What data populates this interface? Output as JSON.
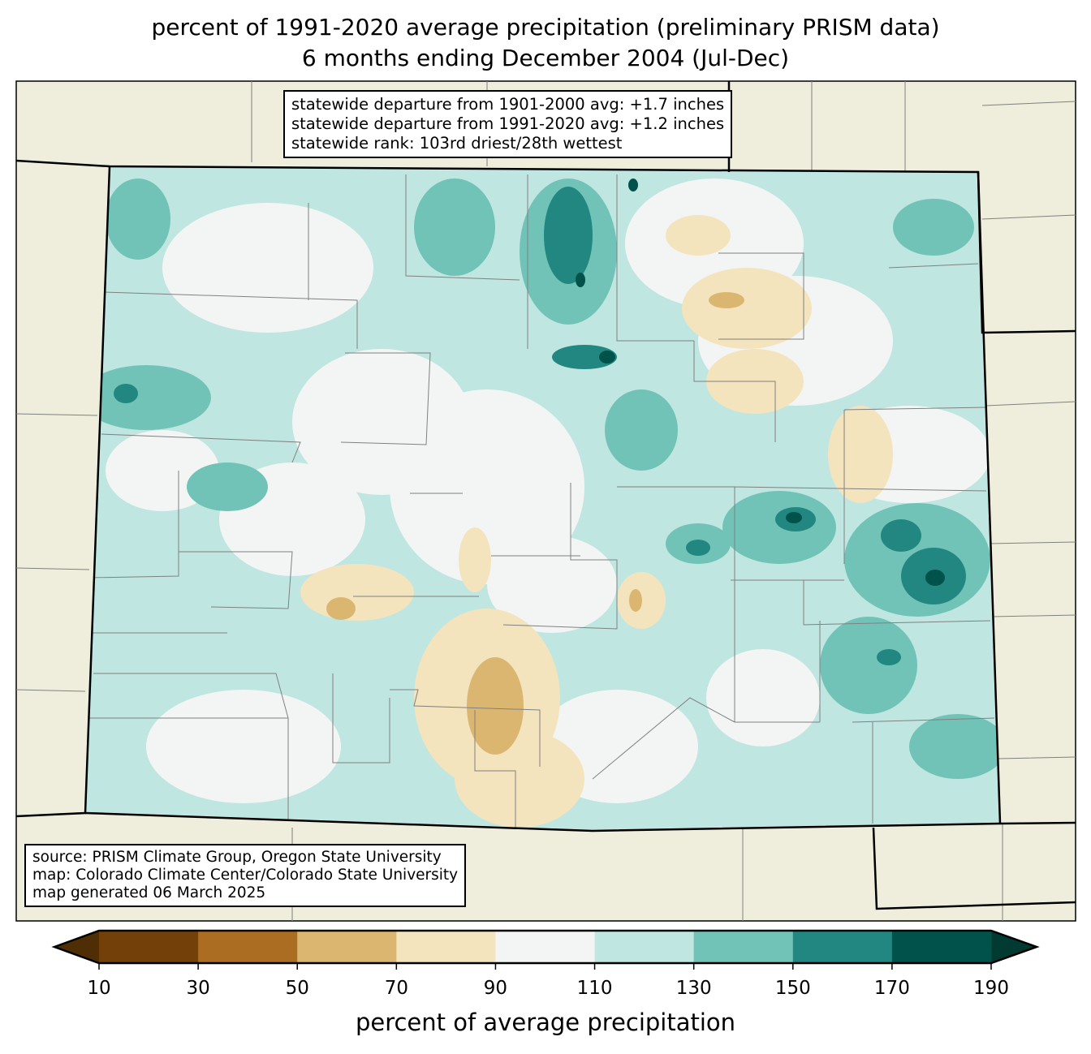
{
  "title": {
    "line1": "percent of 1991-2020 average precipitation (preliminary PRISM data)",
    "line2": "6 months ending December 2004 (Jul-Dec)"
  },
  "stats": {
    "lines": [
      "statewide departure from 1901-2000 avg: +1.7 inches",
      "statewide departure from 1991-2020 avg: +1.2 inches",
      "statewide rank: 103rd driest/28th wettest"
    ]
  },
  "source": {
    "lines": [
      "source: PRISM Climate Group, Oregon State University",
      "map: Colorado Climate Center/Colorado State University",
      "map generated 06 March 2025"
    ]
  },
  "colorbar": {
    "label": "percent of average precipitation",
    "ticks": [
      "10",
      "30",
      "50",
      "70",
      "90",
      "110",
      "130",
      "150",
      "170",
      "190"
    ],
    "colors": [
      "#734009",
      "#ab6d22",
      "#dbb671",
      "#f3e4bd",
      "#f3f5f4",
      "#bfe6e1",
      "#72c3b7",
      "#228781",
      "#01524a"
    ],
    "under_color": "#4f2d05",
    "over_color": "#003a31"
  },
  "map_colors": {
    "background": "#efeedc",
    "border": "#000000",
    "county": "#808080"
  }
}
